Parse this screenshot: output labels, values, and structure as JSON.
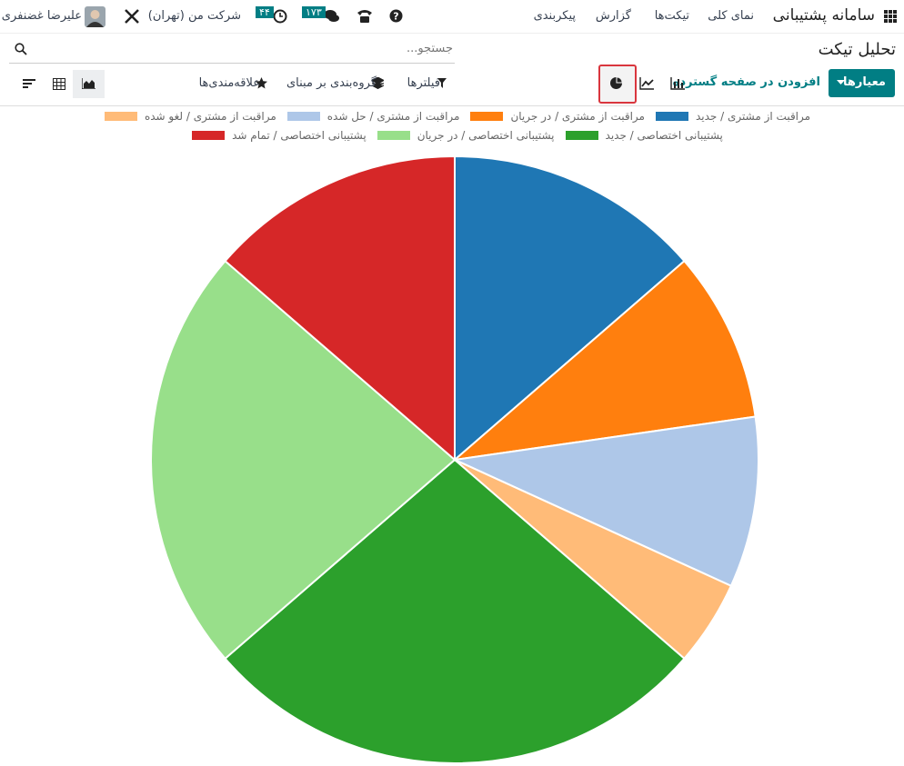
{
  "nav": {
    "app_title": "سامانه پشتیبانی",
    "menu": [
      "نمای کلی",
      "تیکت‌ها",
      "گزارش",
      "پیکربندی"
    ],
    "company": "شرکت من (تهران)",
    "user": "علیرضا غضنفری",
    "messages_badge": "۱۷۳",
    "activities_badge": "۴۴"
  },
  "page": {
    "title": "تحلیل تیکت",
    "search_placeholder": "جستجو...",
    "measures_button": "معیارها",
    "insert_spreadsheet": "افزودن در صفحه گسترده",
    "filters": "فیلترها",
    "group_by": "گروه‌بندی بر مبنای",
    "favorites": "علاقه‌مندی‌ها"
  },
  "chart_data": {
    "type": "pie",
    "categories": [
      "مراقبت از مشتری / جدید",
      "مراقبت از مشتری / در جریان",
      "مراقبت از مشتری / حل شده",
      "مراقبت از مشتری / لغو شده",
      "پشتیبانی اختصاصی / جدید",
      "پشتیبانی اختصاصی / در جریان",
      "پشتیبانی اختصاصی / تمام شد"
    ],
    "values": [
      3,
      2,
      2,
      1,
      6,
      5,
      3
    ],
    "colors": [
      "#1f77b4",
      "#ff7f0e",
      "#aec7e8",
      "#ffbb78",
      "#2ca02c",
      "#98df8a",
      "#d62728"
    ]
  }
}
